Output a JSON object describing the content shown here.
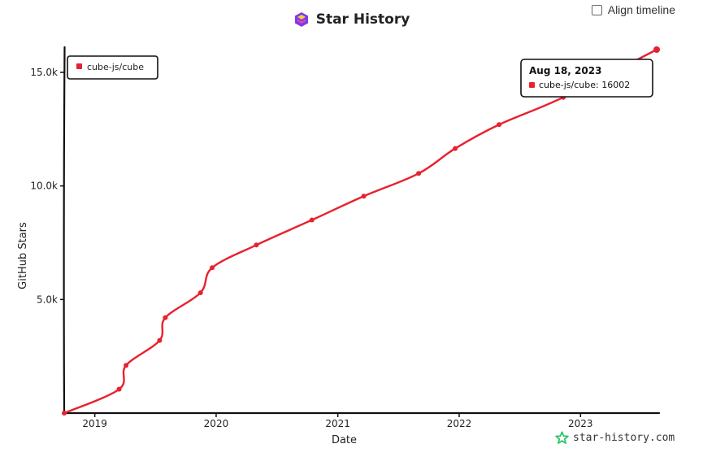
{
  "header": {
    "title": "Star History",
    "logo_icon": "star-history-logo-icon"
  },
  "controls": {
    "align_timeline_label": "Align timeline",
    "align_timeline_checked": false
  },
  "watermark": {
    "text": "star-history.com",
    "icon": "star-icon"
  },
  "colors": {
    "series": "#e8212e",
    "axis": "#111111"
  },
  "tooltip": {
    "date": "Aug 18, 2023",
    "series": "cube-js/cube",
    "value": 16002
  },
  "chart_data": {
    "type": "line",
    "title": "Star History",
    "xlabel": "Date",
    "ylabel": "GitHub Stars",
    "x_type": "date",
    "xlim": [
      "2018-10-01",
      "2023-08-18"
    ],
    "ylim": [
      0,
      16002
    ],
    "yticks": [
      5000,
      10000,
      15000
    ],
    "ytick_labels": [
      "5.0k",
      "10.0k",
      "15.0k"
    ],
    "xticks": [
      "2019-01-01",
      "2020-01-01",
      "2021-01-01",
      "2022-01-01",
      "2023-01-01"
    ],
    "xtick_labels": [
      "2019",
      "2020",
      "2021",
      "2022",
      "2023"
    ],
    "legend": {
      "placement": "top-left",
      "entries": [
        "cube-js/cube"
      ]
    },
    "grid": false,
    "series": [
      {
        "name": "cube-js/cube",
        "color": "#e8212e",
        "x": [
          "2018-10-01",
          "2019-03-15",
          "2019-04-05",
          "2019-07-15",
          "2019-08-01",
          "2019-11-15",
          "2019-12-20",
          "2020-05-01",
          "2020-10-15",
          "2021-03-20",
          "2021-09-01",
          "2021-12-20",
          "2022-05-01",
          "2022-11-10",
          "2023-08-18"
        ],
        "y": [
          0,
          1050,
          2100,
          3200,
          4200,
          5300,
          6400,
          7400,
          8500,
          9550,
          10550,
          11650,
          12700,
          13900,
          16002
        ]
      }
    ]
  }
}
